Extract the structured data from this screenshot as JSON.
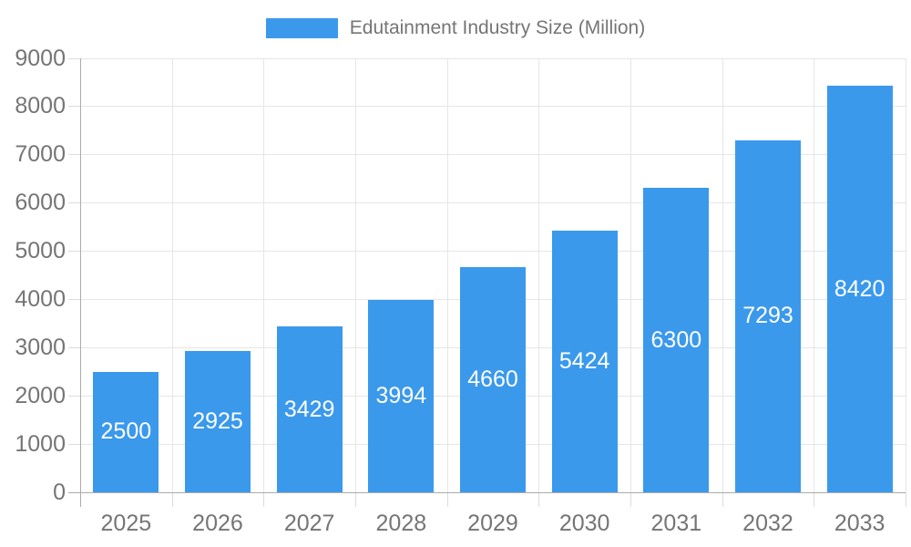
{
  "chart_data": {
    "type": "bar",
    "title": "",
    "legend": {
      "label": "Edutainment Industry Size (Million)",
      "position": "top-center"
    },
    "categories": [
      "2025",
      "2026",
      "2027",
      "2028",
      "2029",
      "2030",
      "2031",
      "2032",
      "2033"
    ],
    "series": [
      {
        "name": "Edutainment Industry Size (Million)",
        "values": [
          2500,
          2925,
          3429,
          3994,
          4660,
          5424,
          6300,
          7293,
          8420
        ]
      }
    ],
    "xlabel": "",
    "ylabel": "",
    "ylim": [
      0,
      9000
    ],
    "yticks": [
      0,
      1000,
      2000,
      3000,
      4000,
      5000,
      6000,
      7000,
      8000,
      9000
    ],
    "grid": "horizontal and vertical category boundaries",
    "data_labels": "inside bars, vertically centered, white"
  },
  "colors": {
    "bar": "#3b99ec",
    "bar_label": "#ffffff",
    "axis_label": "#757575",
    "legend_text": "#757575",
    "gridline": "#e6e6e6",
    "tick": "#dcdcdc",
    "axis_line": "#ababab",
    "background": "#ffffff"
  }
}
